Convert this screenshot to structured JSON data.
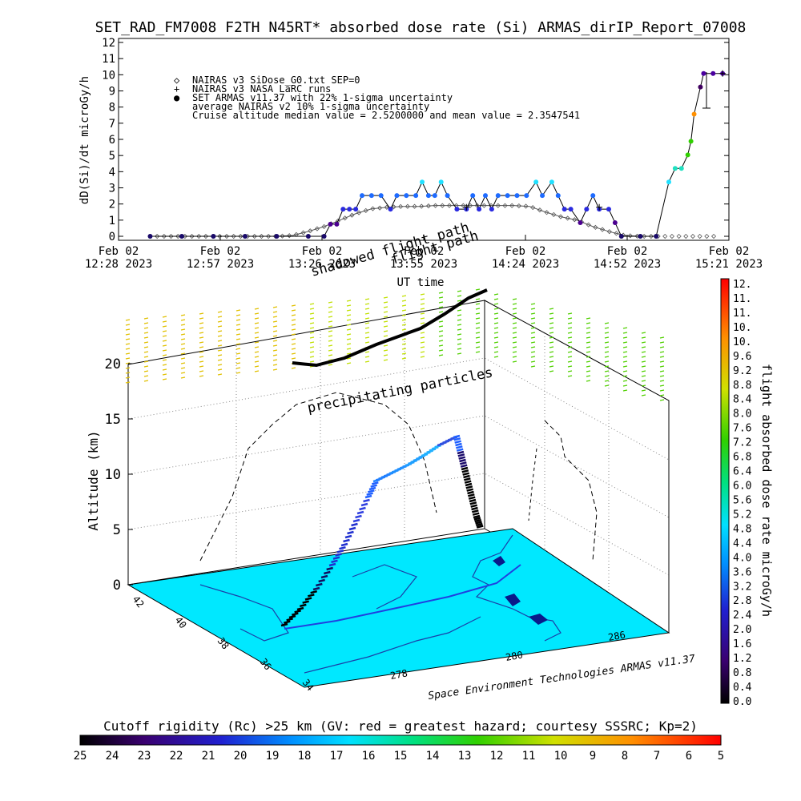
{
  "header": {
    "title": "SET_RAD_FM7008  F2TH N45RT* absorbed dose rate (Si) ARMAS_dirIP_Report_07008"
  },
  "time_plot": {
    "ylabel": "dD(Si)/dt microGy/h",
    "xlabel": "UT time",
    "y_ticks": [
      "0",
      "1",
      "2",
      "3",
      "4",
      "5",
      "6",
      "7",
      "8",
      "9",
      "10",
      "11",
      "12"
    ],
    "x_ticks": [
      {
        "top": "Feb 02",
        "bottom": "12:28 2023"
      },
      {
        "top": "Feb 02",
        "bottom": "12:57 2023"
      },
      {
        "top": "Feb 02",
        "bottom": "13:26 2023"
      },
      {
        "top": "Feb 02",
        "bottom": "13:55 2023"
      },
      {
        "top": "Feb 02",
        "bottom": "14:24 2023"
      },
      {
        "top": "Feb 02",
        "bottom": "14:52 2023"
      },
      {
        "top": "Feb 02",
        "bottom": "15:21 2023"
      }
    ],
    "legend": [
      {
        "symbol": "◇",
        "text": "NAIRAS v3 SiDose_G0.txt SEP=0"
      },
      {
        "symbol": "+",
        "text": "NAIRAS v3 NASA LaRC runs"
      },
      {
        "symbol": "●",
        "text": "SET ARMAS v11.37 with 22% 1-sigma uncertainty"
      },
      {
        "symbol": "",
        "text": "average NAIRAS v2 10% 1-sigma uncertainty"
      },
      {
        "symbol": "",
        "text": "Cruise altitude median value =  2.5200000 and mean value =  2.3547541"
      }
    ],
    "overlay_labels": [
      "shadowed flight path",
      "flight path"
    ]
  },
  "chart_data": {
    "type": "line",
    "title": "SET_RAD_FM7008  F2TH N45RT* absorbed dose rate (Si) ARMAS_dirIP_Report_07008",
    "xlabel": "UT time",
    "ylabel": "dD(Si)/dt microGy/h",
    "ylim": [
      0,
      12
    ],
    "x_range_minutes_after_1228": [
      0,
      173
    ],
    "series": [
      {
        "name": "NAIRAS v3 SiDose_G0.txt SEP=0",
        "points": [
          [
            10,
            0
          ],
          [
            20,
            0
          ],
          [
            30,
            0
          ],
          [
            40,
            0
          ],
          [
            50,
            0
          ],
          [
            55,
            0.05
          ],
          [
            60,
            0.3
          ],
          [
            65,
            0.6
          ],
          [
            70,
            1.0
          ],
          [
            75,
            1.4
          ],
          [
            80,
            1.7
          ],
          [
            85,
            1.8
          ],
          [
            90,
            1.85
          ],
          [
            95,
            1.85
          ],
          [
            100,
            1.9
          ],
          [
            105,
            1.9
          ],
          [
            110,
            1.9
          ],
          [
            115,
            1.9
          ],
          [
            120,
            1.9
          ],
          [
            125,
            1.9
          ],
          [
            130,
            1.85
          ],
          [
            135,
            1.5
          ],
          [
            140,
            1.2
          ],
          [
            145,
            1.0
          ],
          [
            150,
            0.6
          ],
          [
            155,
            0.3
          ],
          [
            160,
            0.05
          ],
          [
            165,
            0
          ],
          [
            170,
            0
          ]
        ]
      },
      {
        "name": "SET ARMAS v11.37 with 22% 1-sigma uncertainty",
        "points": [
          [
            10,
            0
          ],
          [
            20,
            0
          ],
          [
            30,
            0
          ],
          [
            40,
            0
          ],
          [
            50,
            0
          ],
          [
            60,
            0
          ],
          [
            65,
            0
          ],
          [
            67,
            0.75
          ],
          [
            69,
            0.75
          ],
          [
            71,
            1.68
          ],
          [
            73,
            1.68
          ],
          [
            75,
            1.68
          ],
          [
            77,
            2.52
          ],
          [
            80,
            2.52
          ],
          [
            83,
            2.52
          ],
          [
            86,
            1.68
          ],
          [
            88,
            2.52
          ],
          [
            91,
            2.52
          ],
          [
            94,
            2.52
          ],
          [
            96,
            3.36
          ],
          [
            98,
            2.52
          ],
          [
            100,
            2.52
          ],
          [
            102,
            3.36
          ],
          [
            104,
            2.52
          ],
          [
            107,
            1.68
          ],
          [
            110,
            1.68
          ],
          [
            112,
            2.52
          ],
          [
            114,
            1.68
          ],
          [
            116,
            2.52
          ],
          [
            118,
            1.68
          ],
          [
            120,
            2.52
          ],
          [
            123,
            2.52
          ],
          [
            126,
            2.52
          ],
          [
            129,
            2.52
          ],
          [
            132,
            3.36
          ],
          [
            134,
            2.52
          ],
          [
            137,
            3.36
          ],
          [
            139,
            2.52
          ],
          [
            141,
            1.68
          ],
          [
            143,
            1.68
          ],
          [
            146,
            0.84
          ],
          [
            148,
            1.68
          ],
          [
            150,
            2.52
          ],
          [
            152,
            1.68
          ],
          [
            155,
            1.68
          ],
          [
            157,
            0.84
          ],
          [
            159,
            0
          ],
          [
            165,
            0
          ],
          [
            170,
            0
          ],
          [
            174,
            3.36
          ],
          [
            176,
            4.2
          ],
          [
            178,
            4.2
          ],
          [
            180,
            5.04
          ],
          [
            181,
            5.88
          ],
          [
            182,
            7.56
          ],
          [
            184,
            9.24
          ],
          [
            185,
            10.08
          ],
          [
            188,
            10.08
          ],
          [
            191,
            10.08
          ]
        ]
      },
      {
        "name": "NAIRAS v3 NASA LaRC runs",
        "points": [
          [
            110,
            1.8
          ],
          [
            152,
            1.8
          ],
          [
            191,
            10.08
          ]
        ]
      }
    ],
    "map_3d": {
      "ylabel": "Altitude (km)",
      "z_ticks": [
        "0",
        "5",
        "10",
        "15",
        "20"
      ],
      "lat_ticks": [
        "42",
        "40",
        "38",
        "36",
        "34"
      ],
      "lon_ticks": [
        "278",
        "280",
        "286"
      ],
      "annotation": "precipitating particles",
      "credit": "Space Environment Technologies ARMAS v11.37"
    },
    "colorbar_right": {
      "label": "flight absorbed dose rate microGy/h",
      "ticks": [
        "12.",
        "11.",
        "11.",
        "10.",
        "10.",
        "9.6",
        "9.2",
        "8.8",
        "8.4",
        "8.0",
        "7.6",
        "7.2",
        "6.8",
        "6.4",
        "6.0",
        "5.6",
        "5.2",
        "4.8",
        "4.4",
        "4.0",
        "3.6",
        "3.2",
        "2.8",
        "2.4",
        "2.0",
        "1.6",
        "1.2",
        "0.8",
        "0.4",
        "0.0"
      ]
    },
    "colorbar_bottom": {
      "label": "Cutoff rigidity (Rc) >25 km (GV: red = greatest hazard; courtesy SSSRC; Kp=2)",
      "ticks": [
        "25",
        "24",
        "23",
        "22",
        "21",
        "20",
        "19",
        "18",
        "17",
        "16",
        "15",
        "14",
        "13",
        "12",
        "11",
        "10",
        "9",
        "8",
        "7",
        "6",
        "5"
      ]
    }
  }
}
